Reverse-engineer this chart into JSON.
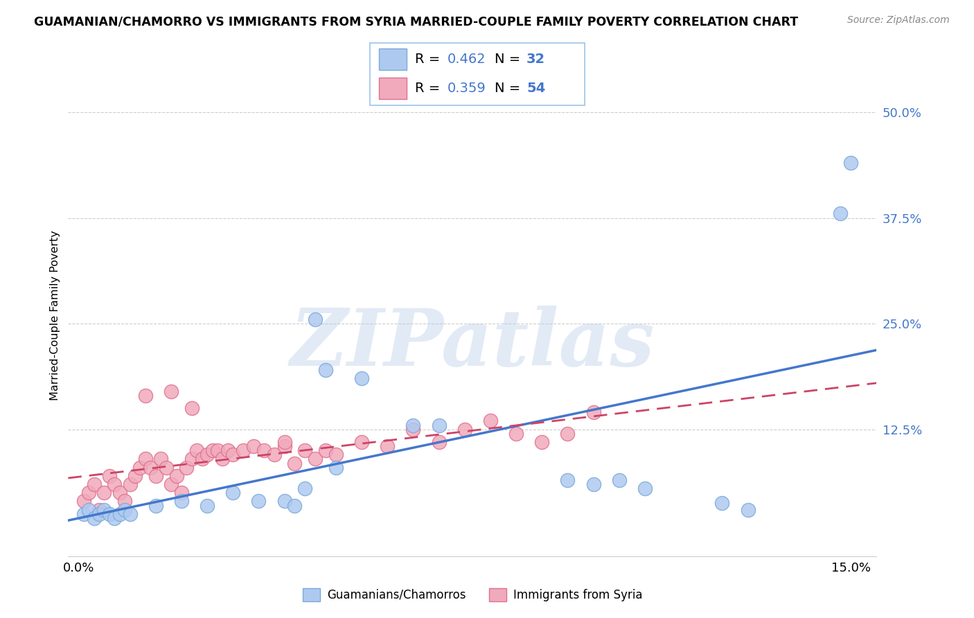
{
  "title": "GUAMANIAN/CHAMORRO VS IMMIGRANTS FROM SYRIA MARRIED-COUPLE FAMILY POVERTY CORRELATION CHART",
  "source": "Source: ZipAtlas.com",
  "ylabel": "Married-Couple Family Poverty",
  "ytick_vals": [
    0.125,
    0.25,
    0.375,
    0.5
  ],
  "ytick_labels": [
    "12.5%",
    "25.0%",
    "37.5%",
    "50.0%"
  ],
  "xlim": [
    -0.002,
    0.155
  ],
  "ylim": [
    -0.025,
    0.545
  ],
  "xtick_vals": [
    0.0,
    0.15
  ],
  "xtick_labels": [
    "0.0%",
    "15.0%"
  ],
  "legend_label1": "Guamanians/Chamorros",
  "legend_label2": "Immigrants from Syria",
  "R1": 0.462,
  "N1": 32,
  "R2": 0.359,
  "N2": 54,
  "color_blue_fill": "#aec9f0",
  "color_blue_edge": "#7aaad8",
  "color_pink_fill": "#f0aabb",
  "color_pink_edge": "#e07090",
  "color_line_blue": "#4477cc",
  "color_line_pink": "#cc4466",
  "color_ytick": "#4477cc",
  "color_legend_text_label": "#000000",
  "color_legend_text_value": "#4477cc",
  "watermark": "ZIPatlas",
  "blue_x": [
    0.001,
    0.002,
    0.003,
    0.004,
    0.005,
    0.006,
    0.007,
    0.008,
    0.009,
    0.01,
    0.015,
    0.02,
    0.025,
    0.03,
    0.035,
    0.04,
    0.042,
    0.044,
    0.046,
    0.048,
    0.05,
    0.055,
    0.065,
    0.07,
    0.095,
    0.1,
    0.105,
    0.11,
    0.125,
    0.13,
    0.148,
    0.15
  ],
  "blue_y": [
    0.025,
    0.03,
    0.02,
    0.025,
    0.03,
    0.025,
    0.02,
    0.025,
    0.03,
    0.025,
    0.035,
    0.04,
    0.035,
    0.05,
    0.04,
    0.04,
    0.035,
    0.055,
    0.255,
    0.195,
    0.08,
    0.185,
    0.13,
    0.13,
    0.065,
    0.06,
    0.065,
    0.055,
    0.038,
    0.03,
    0.38,
    0.44
  ],
  "pink_x": [
    0.001,
    0.002,
    0.003,
    0.004,
    0.005,
    0.006,
    0.007,
    0.008,
    0.009,
    0.01,
    0.011,
    0.012,
    0.013,
    0.014,
    0.015,
    0.016,
    0.017,
    0.018,
    0.019,
    0.02,
    0.021,
    0.022,
    0.023,
    0.024,
    0.025,
    0.026,
    0.027,
    0.028,
    0.029,
    0.03,
    0.032,
    0.034,
    0.036,
    0.038,
    0.04,
    0.042,
    0.044,
    0.046,
    0.048,
    0.05,
    0.055,
    0.06,
    0.065,
    0.07,
    0.075,
    0.08,
    0.085,
    0.09,
    0.095,
    0.1,
    0.013,
    0.018,
    0.022,
    0.04
  ],
  "pink_y": [
    0.04,
    0.05,
    0.06,
    0.03,
    0.05,
    0.07,
    0.06,
    0.05,
    0.04,
    0.06,
    0.07,
    0.08,
    0.09,
    0.08,
    0.07,
    0.09,
    0.08,
    0.06,
    0.07,
    0.05,
    0.08,
    0.09,
    0.1,
    0.09,
    0.095,
    0.1,
    0.1,
    0.09,
    0.1,
    0.095,
    0.1,
    0.105,
    0.1,
    0.095,
    0.105,
    0.085,
    0.1,
    0.09,
    0.1,
    0.095,
    0.11,
    0.105,
    0.125,
    0.11,
    0.125,
    0.135,
    0.12,
    0.11,
    0.12,
    0.145,
    0.165,
    0.17,
    0.15,
    0.11
  ]
}
